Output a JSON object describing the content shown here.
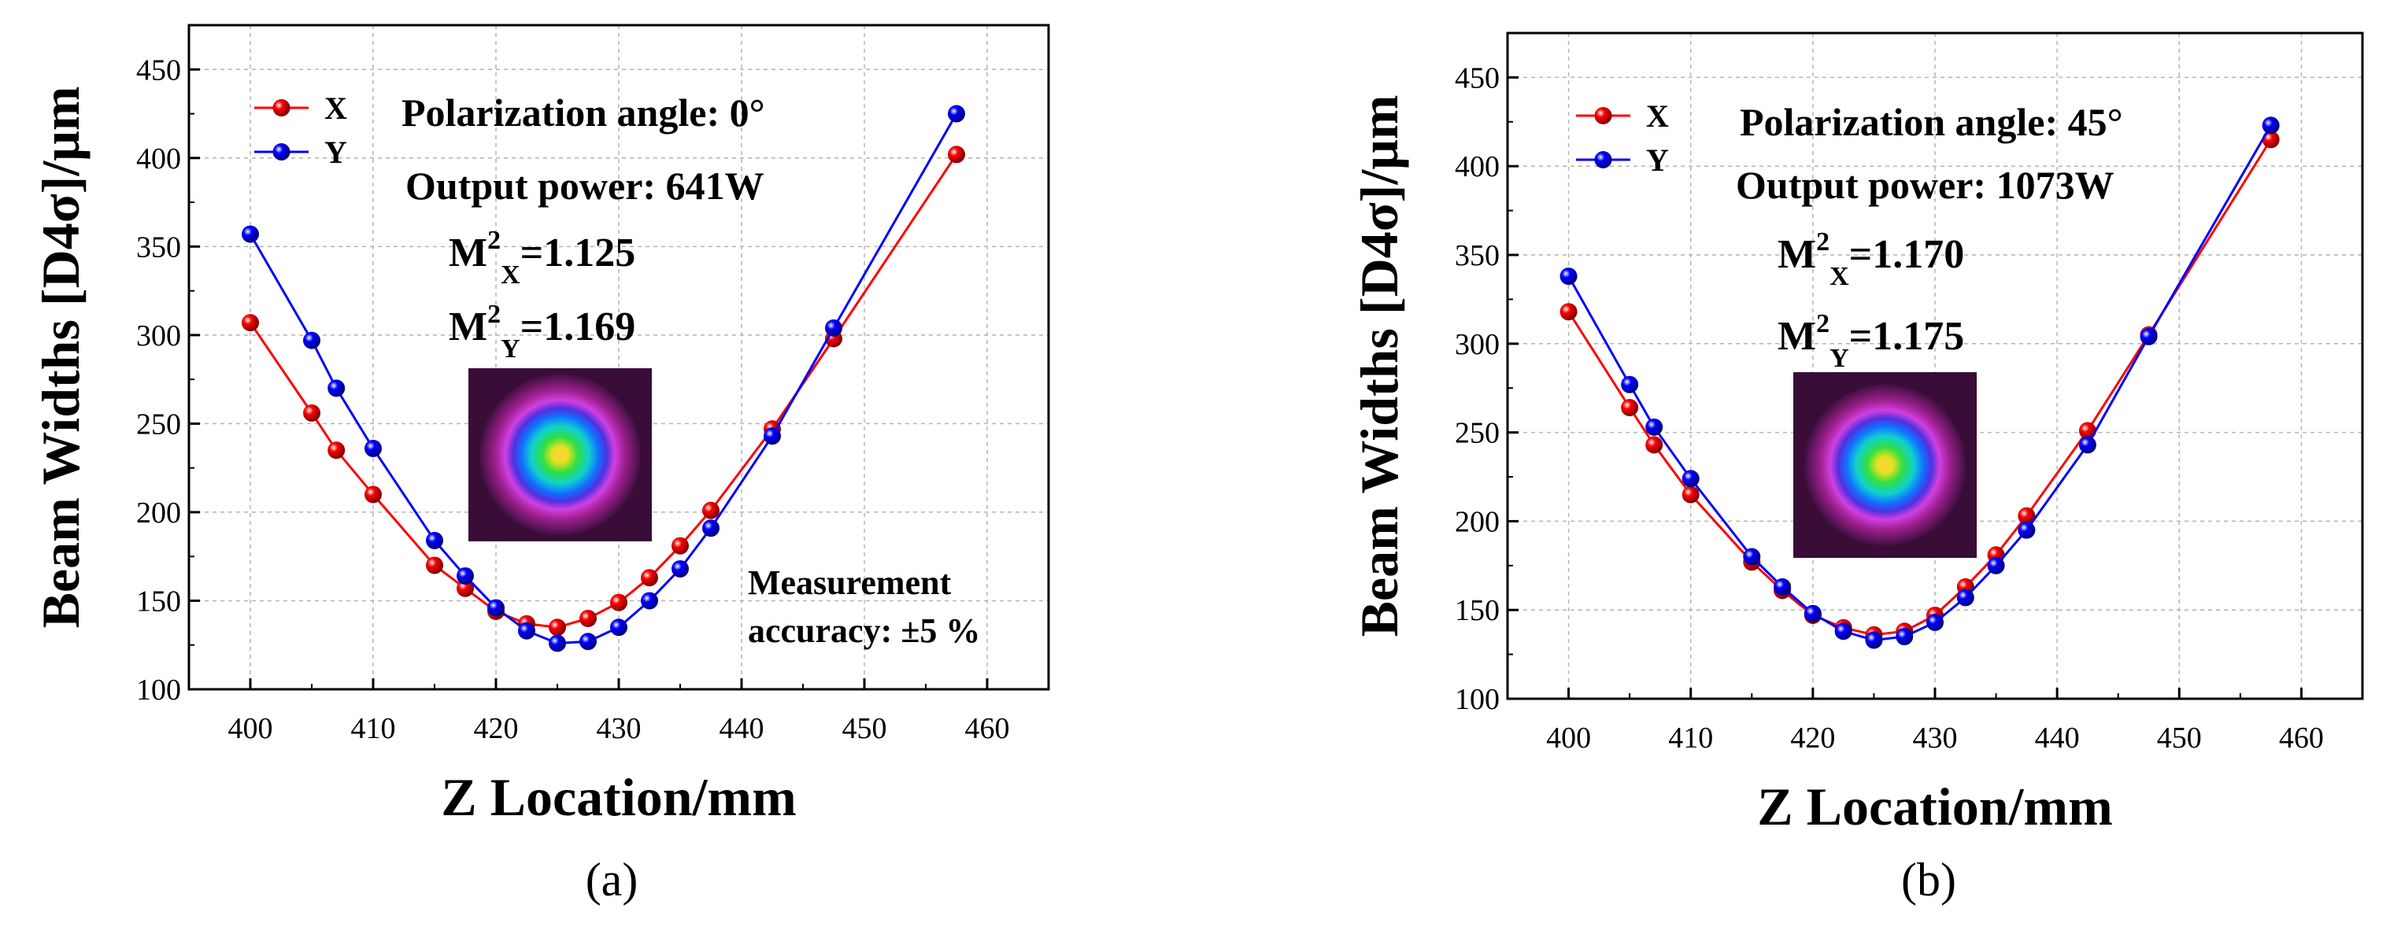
{
  "colors": {
    "x_series": "#ff0000",
    "y_series": "#0000ff",
    "axis": "#000000",
    "grid": "#b4b4b4"
  },
  "chart_data": [
    {
      "type": "line",
      "panel_label": "(a)",
      "xlabel": "Z Location/mm",
      "ylabel": "Beam Widths [D4σ]/μm",
      "xlim": [
        395,
        465
      ],
      "ylim": [
        100,
        475
      ],
      "xticks": [
        400,
        410,
        420,
        430,
        440,
        450,
        460
      ],
      "yticks": [
        100,
        150,
        200,
        250,
        300,
        350,
        400,
        450
      ],
      "grid": true,
      "legend_position": "top-left",
      "series": [
        {
          "name": "X",
          "color": "#ff0000",
          "x": [
            400,
            405,
            407,
            410,
            415,
            417.5,
            420,
            422.5,
            425,
            427.5,
            430,
            432.5,
            435,
            437.5,
            442.5,
            447.5,
            457.5
          ],
          "y": [
            307,
            256,
            235,
            210,
            170,
            157,
            144,
            137,
            135,
            140,
            149,
            163,
            181,
            201,
            247,
            298,
            402
          ]
        },
        {
          "name": "Y",
          "color": "#0000ff",
          "x": [
            400,
            405,
            407,
            410,
            415,
            417.5,
            420,
            422.5,
            425,
            427.5,
            430,
            432.5,
            435,
            437.5,
            442.5,
            447.5,
            457.5
          ],
          "y": [
            357,
            297,
            270,
            236,
            184,
            164,
            146,
            133,
            126,
            127,
            135,
            150,
            168,
            191,
            243,
            304,
            425
          ]
        }
      ],
      "annotations": {
        "polarization": "Polarization angle: 0°",
        "power": "Output power: 641W",
        "m2x_base": "M",
        "m2x_sup": "2",
        "m2x_sub": "X",
        "m2x_value": "=1.125",
        "m2y_base": "M",
        "m2y_sup": "2",
        "m2y_sub": "Y",
        "m2y_value": "=1.169",
        "accuracy_line1": "Measurement",
        "accuracy_line2": "accuracy: ±5 %"
      }
    },
    {
      "type": "line",
      "panel_label": "(b)",
      "xlabel": "Z Location/mm",
      "ylabel": "Beam Widths [D4σ]/μm",
      "xlim": [
        395,
        465
      ],
      "ylim": [
        100,
        475
      ],
      "xticks": [
        400,
        410,
        420,
        430,
        440,
        450,
        460
      ],
      "yticks": [
        100,
        150,
        200,
        250,
        300,
        350,
        400,
        450
      ],
      "grid": true,
      "legend_position": "top-left",
      "series": [
        {
          "name": "X",
          "color": "#ff0000",
          "x": [
            400,
            405,
            407,
            410,
            415,
            417.5,
            420,
            422.5,
            425,
            427.5,
            430,
            432.5,
            435,
            437.5,
            442.5,
            447.5,
            457.5
          ],
          "y": [
            318,
            264,
            243,
            215,
            177,
            161,
            147,
            140,
            136,
            138,
            147,
            163,
            181,
            203,
            251,
            305,
            415
          ]
        },
        {
          "name": "Y",
          "color": "#0000ff",
          "x": [
            400,
            405,
            407,
            410,
            415,
            417.5,
            420,
            422.5,
            425,
            427.5,
            430,
            432.5,
            435,
            437.5,
            442.5,
            447.5,
            457.5
          ],
          "y": [
            338,
            277,
            253,
            224,
            180,
            163,
            148,
            138,
            133,
            135,
            143,
            157,
            175,
            195,
            243,
            304,
            423
          ]
        }
      ],
      "annotations": {
        "polarization": "Polarization angle: 45°",
        "power": "Output power: 1073W",
        "m2x_base": "M",
        "m2x_sup": "2",
        "m2x_sub": "X",
        "m2x_value": "=1.170",
        "m2y_base": "M",
        "m2y_sup": "2",
        "m2y_sub": "Y",
        "m2y_value": "=1.175"
      }
    }
  ]
}
